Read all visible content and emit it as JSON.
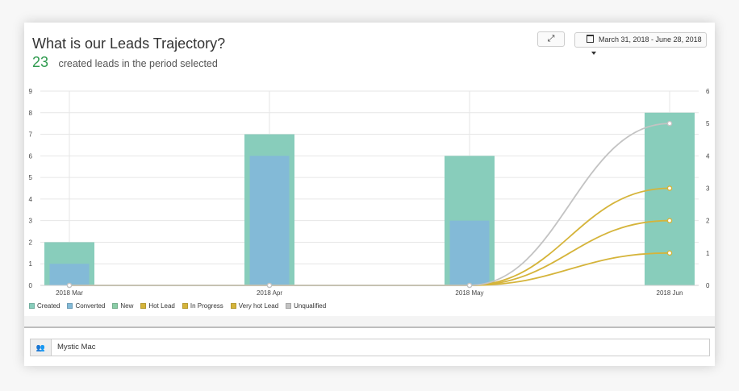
{
  "header": {
    "title": "What is our Leads Trajectory?",
    "count": "23",
    "subtitle": "created leads in the period selected"
  },
  "toolbar": {
    "expand_icon": "expand-icon",
    "expand_glyph": "⤢",
    "date_range": "March 31, 2018 - June 28, 2018",
    "calendar_icon": "calendar-icon",
    "dropdown_icon": "caret-down-icon"
  },
  "filter": {
    "icon": "users-icon",
    "glyph": "👥",
    "value": "Mystic Mac"
  },
  "chart_data": {
    "type": "bar",
    "categories": [
      "2018 Mar",
      "2018 Apr",
      "2018 May",
      "2018 Jun"
    ],
    "y_left": {
      "ticks": [
        "0",
        "1",
        "2",
        "3",
        "4",
        "5",
        "6",
        "7",
        "8",
        "9"
      ],
      "ylim": [
        0,
        9
      ]
    },
    "y_right": {
      "ticks": [
        "0",
        "1",
        "2",
        "3",
        "4",
        "5",
        "6"
      ],
      "ylim": [
        0,
        6
      ]
    },
    "grid": true,
    "legend_placement": "bottom-left",
    "bar_series": [
      {
        "name": "Created",
        "values": [
          2,
          7,
          6,
          8
        ],
        "color": "#88cdbb"
      },
      {
        "name": "Converted",
        "values": [
          1,
          6,
          3,
          0
        ],
        "color": "#83bad7"
      },
      {
        "name": "New",
        "values": [
          0,
          0,
          0,
          0
        ],
        "color": "#8acda6"
      }
    ],
    "line_series": [
      {
        "name": "Hot Lead",
        "axis": "right",
        "values": [
          0,
          0,
          0,
          3
        ],
        "color": "#d5b43a"
      },
      {
        "name": "In Progress",
        "axis": "right",
        "values": [
          0,
          0,
          0,
          2
        ],
        "color": "#d5b43a"
      },
      {
        "name": "Very hot Lead",
        "axis": "right",
        "values": [
          0,
          0,
          0,
          1
        ],
        "color": "#d5b43a"
      },
      {
        "name": "Unqualified",
        "axis": "right",
        "values": [
          0,
          0,
          0,
          5
        ],
        "color": "#c3c3c3"
      }
    ],
    "legend": [
      {
        "name": "Created",
        "color": "#88cdbb"
      },
      {
        "name": "Converted",
        "color": "#83bad7"
      },
      {
        "name": "New",
        "color": "#8acda6"
      },
      {
        "name": "Hot Lead",
        "color": "#d5b43a"
      },
      {
        "name": "In Progress",
        "color": "#d5b43a"
      },
      {
        "name": "Very hot Lead",
        "color": "#d5b43a"
      },
      {
        "name": "Unqualified",
        "color": "#c3c3c3"
      }
    ]
  }
}
